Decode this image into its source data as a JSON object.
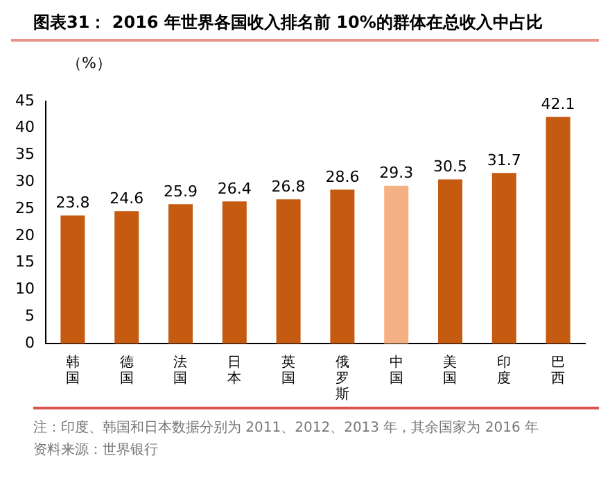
{
  "chart_data": {
    "type": "bar",
    "title": "图表31：  2016 年世界各国收入排名前 10%的群体在总收入中占比",
    "ylabel": "（%）",
    "categories": [
      "韩国",
      "德国",
      "法国",
      "日本",
      "英国",
      "俄罗斯",
      "中国",
      "美国",
      "印度",
      "巴西"
    ],
    "values": [
      23.8,
      24.6,
      25.9,
      26.4,
      26.8,
      28.6,
      29.3,
      30.5,
      31.7,
      42.1
    ],
    "colors": [
      "#c55a11",
      "#c55a11",
      "#c55a11",
      "#c55a11",
      "#c55a11",
      "#c55a11",
      "#f4b183",
      "#c55a11",
      "#c55a11",
      "#c55a11"
    ],
    "ylim": [
      0,
      45
    ],
    "yticks": [
      0,
      5,
      10,
      15,
      20,
      25,
      30,
      35,
      40,
      45
    ],
    "grid": false,
    "legend": false,
    "data_labels": true,
    "annotations": [
      "注：印度、韩国和日本数据分别为 2011、2012、2013 年，其余国家为 2016 年",
      "资料来源：世界银行"
    ]
  }
}
